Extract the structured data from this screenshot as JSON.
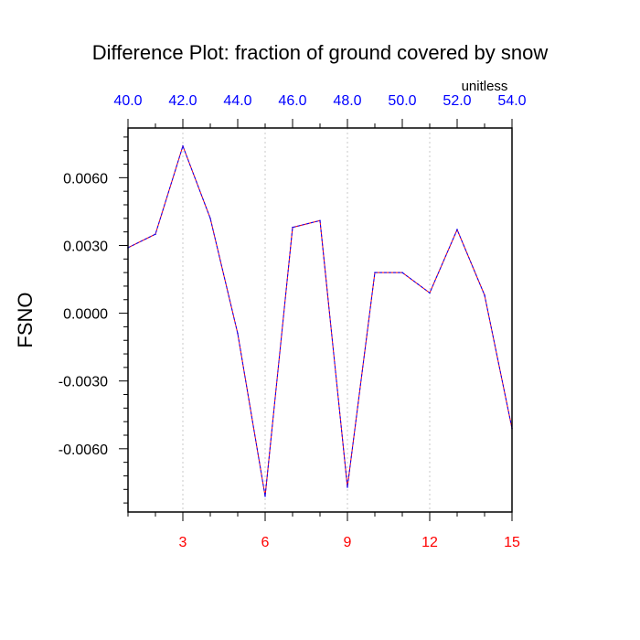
{
  "chart_data": {
    "type": "line",
    "title": "Difference Plot: fraction of ground covered by snow",
    "ylabel": "FSNO",
    "top_axis_units": "unitless",
    "xlim": [
      1,
      15
    ],
    "ylim": [
      -0.0088,
      0.0082
    ],
    "top_axis_range": [
      40.0,
      54.0
    ],
    "x_ticks": [
      3,
      6,
      9,
      12,
      15
    ],
    "x_tick_labels": [
      "3",
      "6",
      "9",
      "12",
      "15"
    ],
    "top_ticks": [
      40.0,
      42.0,
      44.0,
      46.0,
      48.0,
      50.0,
      52.0,
      54.0
    ],
    "top_tick_labels": [
      "40.0",
      "42.0",
      "44.0",
      "46.0",
      "48.0",
      "50.0",
      "52.0",
      "54.0"
    ],
    "y_ticks": [
      0.006,
      0.003,
      0.0,
      -0.003,
      -0.006
    ],
    "y_tick_labels": [
      "0.0060",
      "0.0030",
      "0.0000",
      "-0.0030",
      "-0.0060"
    ],
    "vertical_gridlines": [
      3,
      6,
      9,
      12
    ],
    "series": [
      {
        "x": [
          1,
          2,
          3,
          4,
          5,
          6,
          7,
          8,
          9,
          10,
          11,
          12,
          13,
          14,
          15
        ],
        "values": [
          0.0029,
          0.0035,
          0.0074,
          0.0042,
          -0.0009,
          -0.0081,
          0.0038,
          0.0041,
          -0.0077,
          0.0018,
          0.0018,
          0.0009,
          0.0037,
          0.0008,
          -0.0051
        ]
      }
    ],
    "colors": {
      "line_solid": "#ff0000",
      "line_dash": "#0000ff",
      "bottom_tick_labels": "#ff0000",
      "top_tick_labels": "#0000ff",
      "grid": "#c8c8c8"
    }
  }
}
